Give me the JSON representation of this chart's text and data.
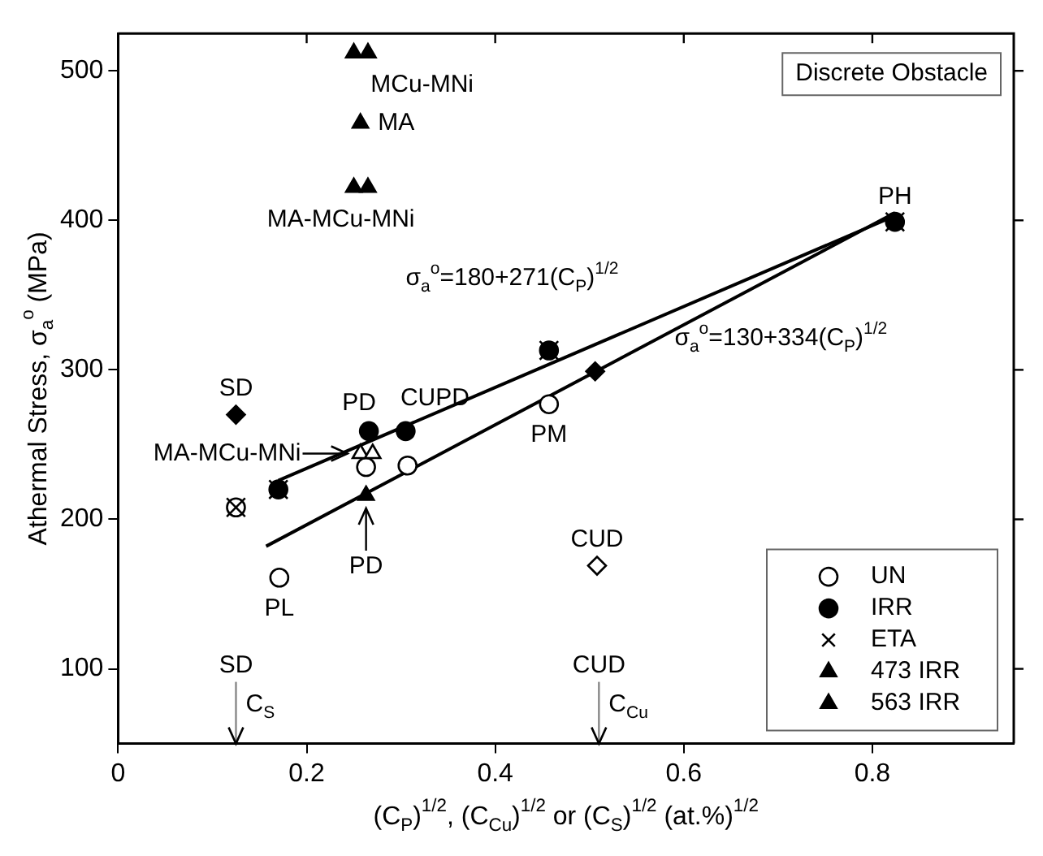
{
  "chart_data": {
    "type": "scatter",
    "xlabel": "(C$_{P}$)$^{1/2}$, (C$_{Cu}$)$^{1/2}$ or (C$_{S}$)$^{1/2}$ (at.%)$^{1/2}$",
    "ylabel": "Athermal Stress, σ$_{a}$$^{o}$ (MPa)",
    "xlim": [
      0,
      0.95
    ],
    "xticks": [
      0,
      0.2,
      0.4,
      0.6,
      0.8
    ],
    "ylim": [
      50,
      525
    ],
    "yticks": [
      100,
      200,
      300,
      400,
      500
    ],
    "legend": "bottom right",
    "series": [
      {
        "name": "UN",
        "marker": "circle",
        "color": "#ffffff",
        "x": [
          0.171,
          0.263,
          0.307,
          0.457,
          0.125
        ],
        "values": [
          161,
          235,
          236,
          277,
          208
        ]
      },
      {
        "name": "IRR",
        "marker": "circle",
        "color": "#000000",
        "x": [
          0.266,
          0.305,
          0.457,
          0.17,
          0.824
        ],
        "values": [
          259,
          259,
          313,
          220,
          399
        ]
      },
      {
        "name": "ETA",
        "marker": "cross",
        "color": "#000000",
        "x": [
          0.457,
          0.17,
          0.824,
          0.125
        ],
        "values": [
          313,
          220,
          399,
          208
        ]
      },
      {
        "name": "473 IRR",
        "marker": "triangle",
        "color": "#000000",
        "x": [
          0.25,
          0.265,
          0.257
        ],
        "values": [
          512,
          512,
          465
        ]
      },
      {
        "name": "563 IRR",
        "marker": "triangle",
        "color": "#000000",
        "x": [
          0.25,
          0.265,
          0.263
        ],
        "values": [
          422,
          422,
          216
        ]
      },
      {
        "marker": "triangle",
        "color": "#ffffff",
        "x": [
          0.257,
          0.27
        ],
        "values": [
          244,
          244
        ]
      },
      {
        "marker": "diamond",
        "color": "#000000",
        "x": [
          0.125,
          0.506
        ],
        "values": [
          270,
          299
        ]
      },
      {
        "marker": "diamond",
        "color": "#ffffff",
        "x": [
          0.508
        ],
        "values": [
          169
        ]
      },
      {
        "type": "line",
        "marker": "none",
        "color": "#000000",
        "x": [
          0.17,
          0.824
        ],
        "values": [
          226,
          403
        ]
      },
      {
        "type": "line",
        "marker": "none",
        "color": "#000000",
        "x": [
          0.157,
          0.824
        ],
        "values": [
          182,
          405
        ]
      }
    ],
    "ref_lines": [
      {
        "axis": "x",
        "value": 0.125,
        "label": "C$_{S}$"
      },
      {
        "axis": "x",
        "value": 0.51,
        "label": "C$_{Cu}$"
      }
    ],
    "annotations": [
      {
        "text": "PH",
        "x": 0.824,
        "y": 399
      },
      {
        "text": "SD",
        "x": 0.125,
        "y": 270
      },
      {
        "text": "PD",
        "x": 0.266,
        "y": 259
      },
      {
        "text": "CUPD",
        "x": 0.305,
        "y": 259
      },
      {
        "text": "PM",
        "x": 0.457,
        "y": 277
      },
      {
        "text": "PL",
        "x": 0.171,
        "y": 161
      },
      {
        "text": "CUD",
        "x": 0.508,
        "y": 169
      },
      {
        "text": "MCu-MNi",
        "x": 0.257,
        "y": 512
      },
      {
        "text": "MA",
        "x": 0.257,
        "y": 465
      },
      {
        "text": "MA-MCu-MNi",
        "x": 0.257,
        "y": 422
      },
      {
        "text": "MA-MCu-MNi",
        "x": 0.257,
        "y": 244
      },
      {
        "text": "PD",
        "x": 0.263,
        "y": 216
      },
      "σ$_{a}$$^{o}$=180+271(C$_{P}$)$^{1/2}$",
      "σ$_{a}$$^{o}$=130+334(C$_{P}$)$^{1/2}$",
      "SD",
      "CUD",
      "Discrete Obstacle"
    ]
  }
}
